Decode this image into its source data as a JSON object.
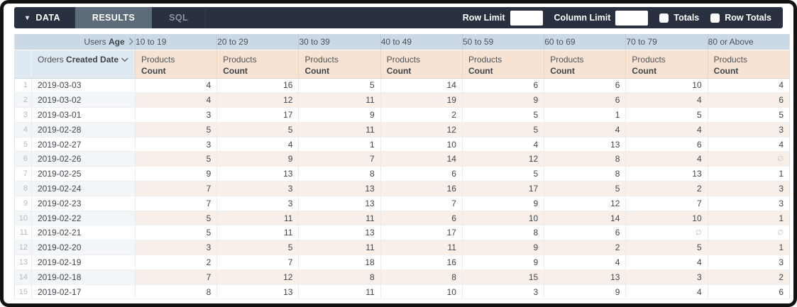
{
  "toolbar": {
    "data_tab": "DATA",
    "results_tab": "RESULTS",
    "sql_tab": "SQL",
    "row_limit_label": "Row Limit",
    "row_limit_value": "",
    "column_limit_label": "Column Limit",
    "column_limit_value": "",
    "totals_label": "Totals",
    "row_totals_label": "Row Totals",
    "totals_checked": false,
    "row_totals_checked": false
  },
  "table": {
    "pivot": {
      "dimension_prefix": "Users",
      "dimension_name": "Age",
      "columns": [
        "10 to 19",
        "20 to 29",
        "30 to 39",
        "40 to 49",
        "50 to 59",
        "60 to 69",
        "70 to 79",
        "80 or Above"
      ]
    },
    "row_dimension": {
      "prefix": "Orders",
      "name": "Created Date"
    },
    "measure": {
      "prefix": "Products",
      "name": "Count"
    },
    "null_symbol": "∅",
    "rows": [
      {
        "index": 1,
        "date": "2019-03-03",
        "values": [
          4,
          16,
          5,
          14,
          6,
          6,
          10,
          4
        ]
      },
      {
        "index": 2,
        "date": "2019-03-02",
        "values": [
          4,
          12,
          11,
          19,
          9,
          6,
          4,
          6
        ]
      },
      {
        "index": 3,
        "date": "2019-03-01",
        "values": [
          3,
          17,
          9,
          2,
          5,
          1,
          5,
          5
        ]
      },
      {
        "index": 4,
        "date": "2019-02-28",
        "values": [
          5,
          5,
          11,
          12,
          5,
          4,
          4,
          3
        ]
      },
      {
        "index": 5,
        "date": "2019-02-27",
        "values": [
          3,
          4,
          1,
          10,
          4,
          13,
          6,
          4
        ]
      },
      {
        "index": 6,
        "date": "2019-02-26",
        "values": [
          5,
          9,
          7,
          14,
          12,
          8,
          4,
          "∅"
        ]
      },
      {
        "index": 7,
        "date": "2019-02-25",
        "values": [
          9,
          13,
          8,
          6,
          5,
          8,
          13,
          1
        ]
      },
      {
        "index": 8,
        "date": "2019-02-24",
        "values": [
          7,
          3,
          13,
          16,
          17,
          5,
          2,
          3
        ]
      },
      {
        "index": 9,
        "date": "2019-02-23",
        "values": [
          7,
          3,
          13,
          7,
          9,
          12,
          7,
          3
        ]
      },
      {
        "index": 10,
        "date": "2019-02-22",
        "values": [
          5,
          11,
          11,
          6,
          10,
          14,
          10,
          1
        ]
      },
      {
        "index": 11,
        "date": "2019-02-21",
        "values": [
          5,
          11,
          13,
          17,
          8,
          6,
          "∅",
          "∅"
        ]
      },
      {
        "index": 12,
        "date": "2019-02-20",
        "values": [
          3,
          5,
          11,
          11,
          9,
          2,
          5,
          1
        ]
      },
      {
        "index": 13,
        "date": "2019-02-19",
        "values": [
          2,
          7,
          18,
          16,
          9,
          4,
          4,
          3
        ]
      },
      {
        "index": 14,
        "date": "2019-02-18",
        "values": [
          7,
          12,
          8,
          8,
          15,
          13,
          3,
          2
        ]
      },
      {
        "index": 15,
        "date": "2019-02-17",
        "values": [
          8,
          13,
          11,
          10,
          3,
          9,
          4,
          6
        ]
      }
    ]
  },
  "colors": {
    "topbar_bg": "#29303f",
    "results_tab_bg": "#5e6b7b",
    "sql_tab_text": "#8b95a2",
    "pivot_header_bg": "#cbd8e6",
    "dimension_header_bg": "#dfe9f1",
    "measure_header_bg": "#f8e3d2",
    "even_row_dim_bg": "#f3f6f8",
    "even_row_value_bg": "#f8f0e8",
    "null_text": "#b9c0c6"
  }
}
